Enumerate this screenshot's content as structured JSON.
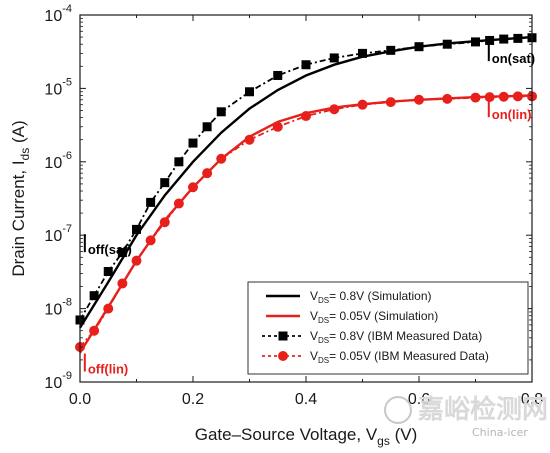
{
  "chart_data": {
    "type": "scatter",
    "xlabel": "Gate–Source Voltage, V",
    "xlabel_sub": "gs",
    "xlabel_unit": " (V)",
    "ylabel": "Drain Current, I",
    "ylabel_sub": "ds",
    "ylabel_unit": " (A)",
    "xlim": [
      0.0,
      0.8
    ],
    "ylim": [
      1e-09,
      0.0001
    ],
    "yscale": "log",
    "x_ticks": [
      "0.0",
      "0.2",
      "0.4",
      "0.6",
      "0.8"
    ],
    "y_tick_mantissa": "10",
    "y_tick_exponents": [
      "-9",
      "-8",
      "-7",
      "-6",
      "-5",
      "-4"
    ],
    "legend_position": "bottom-right",
    "series": [
      {
        "name_main": "V",
        "name_sub": "DS",
        "name_rest": "= 0.8V (Simulation)",
        "style": "solid-line",
        "color": "#000000",
        "x": [
          0.0,
          0.05,
          0.1,
          0.15,
          0.2,
          0.25,
          0.3,
          0.35,
          0.4,
          0.45,
          0.5,
          0.55,
          0.6,
          0.65,
          0.7,
          0.75,
          0.8
        ],
        "y": [
          5.5e-09,
          2.3e-08,
          1e-07,
          3.5e-07,
          1e-06,
          2.5e-06,
          5.3e-06,
          9.5e-06,
          1.5e-05,
          2.1e-05,
          2.7e-05,
          3.2e-05,
          3.7e-05,
          4.1e-05,
          4.4e-05,
          4.7e-05,
          5e-05
        ]
      },
      {
        "name_main": "V",
        "name_sub": "DS",
        "name_rest": "= 0.05V (Simulation)",
        "style": "solid-line",
        "color": "#e8201c",
        "x": [
          0.0,
          0.05,
          0.1,
          0.15,
          0.2,
          0.25,
          0.3,
          0.35,
          0.4,
          0.45,
          0.5,
          0.55,
          0.6,
          0.65,
          0.7,
          0.75,
          0.8
        ],
        "y": [
          2.5e-09,
          1.05e-08,
          4.5e-08,
          1.6e-07,
          4.5e-07,
          1.1e-06,
          2.2e-06,
          3.5e-06,
          4.6e-06,
          5.5e-06,
          6.1e-06,
          6.6e-06,
          7e-06,
          7.3e-06,
          7.6e-06,
          7.8e-06,
          8e-06
        ]
      },
      {
        "name_main": "V",
        "name_sub": "DS",
        "name_rest": "= 0.8V (IBM Measured Data)",
        "style": "dotted-square",
        "color": "#000000",
        "x": [
          0.0,
          0.025,
          0.05,
          0.075,
          0.1,
          0.125,
          0.15,
          0.175,
          0.2,
          0.225,
          0.25,
          0.3,
          0.35,
          0.4,
          0.45,
          0.5,
          0.55,
          0.6,
          0.65,
          0.7,
          0.725,
          0.75,
          0.775,
          0.8
        ],
        "y": [
          7e-09,
          1.5e-08,
          3.2e-08,
          5.8e-08,
          1.2e-07,
          2.8e-07,
          5.2e-07,
          1e-06,
          1.8e-06,
          3e-06,
          4.8e-06,
          9e-06,
          1.5e-05,
          2.1e-05,
          2.6e-05,
          3e-05,
          3.3e-05,
          3.7e-05,
          4e-05,
          4.3e-05,
          4.5e-05,
          4.7e-05,
          4.8e-05,
          4.9e-05
        ]
      },
      {
        "name_main": "V",
        "name_sub": "DS",
        "name_rest": "= 0.05V (IBM Measured Data)",
        "style": "dotted-circle",
        "color": "#e8201c",
        "x": [
          0.0,
          0.025,
          0.05,
          0.075,
          0.1,
          0.125,
          0.15,
          0.175,
          0.2,
          0.225,
          0.25,
          0.3,
          0.35,
          0.4,
          0.45,
          0.5,
          0.55,
          0.6,
          0.65,
          0.7,
          0.725,
          0.75,
          0.775,
          0.8
        ],
        "y": [
          3e-09,
          5e-09,
          1e-08,
          2.2e-08,
          4.5e-08,
          8.5e-08,
          1.5e-07,
          2.7e-07,
          4.5e-07,
          7e-07,
          1.1e-06,
          2e-06,
          3e-06,
          4.2e-06,
          5.2e-06,
          6e-06,
          6.5e-06,
          7e-06,
          7.2e-06,
          7.5e-06,
          7.6e-06,
          7.7e-06,
          7.8e-06,
          7.8e-06
        ]
      }
    ],
    "annotations": [
      {
        "main": "I",
        "sub": "on(sat)",
        "color": "#000000",
        "x": 0.72,
        "y": 4.4e-05
      },
      {
        "main": "I",
        "sub": "on(lin)",
        "color": "#e8201c",
        "x": 0.72,
        "y": 7.6e-06
      },
      {
        "main": "I",
        "sub": "off(sat)",
        "color": "#000000",
        "x": 0.005,
        "y": 1.1e-07
      },
      {
        "main": "I",
        "sub": "off(lin)",
        "color": "#e8201c",
        "x": 0.005,
        "y": 2.6e-09
      }
    ]
  },
  "watermark": {
    "main": "嘉峪检测网",
    "sub": "China-icer"
  }
}
